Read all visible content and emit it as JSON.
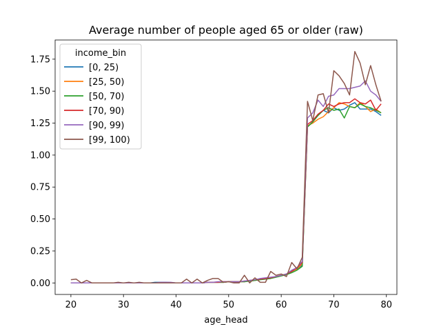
{
  "chart_data": {
    "type": "line",
    "title": "Average number of people aged 65 or older (raw)",
    "xlabel": "age_head",
    "ylabel": "",
    "xlim": [
      17,
      82
    ],
    "ylim": [
      -0.09,
      1.9
    ],
    "x_ticks": [
      20,
      30,
      40,
      50,
      60,
      70,
      80
    ],
    "y_ticks": [
      0.0,
      0.25,
      0.5,
      0.75,
      1.0,
      1.25,
      1.5,
      1.75
    ],
    "y_tick_labels": [
      "0.00",
      "0.25",
      "0.50",
      "0.75",
      "1.00",
      "1.25",
      "1.50",
      "1.75"
    ],
    "legend": {
      "title": "income_bin",
      "position": "upper-left"
    },
    "x": [
      20,
      21,
      22,
      23,
      24,
      25,
      26,
      27,
      28,
      29,
      30,
      31,
      32,
      33,
      34,
      35,
      36,
      37,
      38,
      39,
      40,
      41,
      42,
      43,
      44,
      45,
      46,
      47,
      48,
      49,
      50,
      51,
      52,
      53,
      54,
      55,
      56,
      57,
      58,
      59,
      60,
      61,
      62,
      63,
      64,
      65,
      66,
      67,
      68,
      69,
      70,
      71,
      72,
      73,
      74,
      75,
      76,
      77,
      78,
      79
    ],
    "series": [
      {
        "name": "[0, 25)",
        "color": "#1f77b4",
        "values": [
          0,
          0,
          0,
          0,
          0,
          0,
          0,
          0,
          0,
          0,
          0,
          0,
          0,
          0,
          0,
          0,
          0.005,
          0.005,
          0.005,
          0.003,
          0,
          0,
          0,
          0,
          0,
          0,
          0.005,
          0.005,
          0.005,
          0.005,
          0.01,
          0.01,
          0.01,
          0.01,
          0.015,
          0.02,
          0.03,
          0.035,
          0.04,
          0.05,
          0.06,
          0.07,
          0.09,
          0.11,
          0.14,
          1.22,
          1.26,
          1.31,
          1.35,
          1.33,
          1.37,
          1.35,
          1.36,
          1.39,
          1.41,
          1.36,
          1.36,
          1.36,
          1.34,
          1.31
        ]
      },
      {
        "name": "[25, 50)",
        "color": "#ff7f0e",
        "values": [
          0,
          0,
          0,
          0,
          0,
          0,
          0,
          0,
          0,
          0,
          0,
          0,
          0,
          0,
          0,
          0,
          0,
          0,
          0,
          0,
          0,
          0,
          0,
          0,
          0,
          0,
          0.005,
          0.005,
          0.005,
          0.005,
          0.01,
          0.01,
          0.01,
          0.01,
          0.015,
          0.02,
          0.03,
          0.035,
          0.04,
          0.05,
          0.06,
          0.07,
          0.09,
          0.11,
          0.15,
          1.23,
          1.25,
          1.28,
          1.3,
          1.34,
          1.37,
          1.41,
          1.4,
          1.38,
          1.37,
          1.41,
          1.38,
          1.34,
          1.36,
          1.33
        ]
      },
      {
        "name": "[50, 70)",
        "color": "#2ca02c",
        "values": [
          0,
          0,
          0,
          0,
          0,
          0,
          0,
          0,
          0,
          0,
          0,
          0,
          0,
          0,
          0,
          0,
          0,
          0,
          0,
          0,
          0,
          0,
          0,
          0,
          0,
          0,
          0.005,
          0.005,
          0.005,
          0.005,
          0.01,
          0.01,
          0.01,
          0.01,
          0.015,
          0.02,
          0.025,
          0.03,
          0.035,
          0.045,
          0.055,
          0.065,
          0.08,
          0.1,
          0.13,
          1.22,
          1.26,
          1.31,
          1.35,
          1.37,
          1.35,
          1.36,
          1.29,
          1.38,
          1.37,
          1.4,
          1.38,
          1.37,
          1.35,
          1.33
        ]
      },
      {
        "name": "[70, 90)",
        "color": "#d62728",
        "values": [
          0,
          0,
          0,
          0,
          0,
          0,
          0,
          0,
          0,
          0,
          0,
          0,
          0,
          0,
          0,
          0,
          0,
          0,
          0,
          0,
          0,
          0,
          0,
          0,
          0,
          0,
          0.005,
          0.005,
          0.005,
          0.01,
          0.01,
          0.01,
          0.01,
          0.015,
          0.02,
          0.025,
          0.03,
          0.035,
          0.04,
          0.05,
          0.06,
          0.07,
          0.09,
          0.12,
          0.16,
          1.24,
          1.27,
          1.32,
          1.35,
          1.4,
          1.38,
          1.4,
          1.41,
          1.41,
          1.44,
          1.41,
          1.4,
          1.43,
          1.35,
          1.4
        ]
      },
      {
        "name": "[90, 99)",
        "color": "#9467bd",
        "values": [
          0,
          0,
          0,
          0,
          0,
          0,
          0,
          0,
          0,
          0,
          0,
          0,
          0,
          0,
          0,
          0,
          0,
          0.005,
          0.005,
          0.005,
          0,
          0,
          0,
          0,
          0,
          0,
          0.005,
          0.005,
          0.01,
          0.01,
          0.01,
          0.01,
          0.01,
          0.015,
          0.02,
          0.025,
          0.035,
          0.04,
          0.045,
          0.05,
          0.06,
          0.07,
          0.1,
          0.12,
          0.17,
          1.29,
          1.33,
          1.43,
          1.38,
          1.46,
          1.47,
          1.52,
          1.52,
          1.52,
          1.53,
          1.54,
          1.58,
          1.5,
          1.47,
          1.42
        ]
      },
      {
        "name": "[99, 100)",
        "color": "#8c564b",
        "values": [
          0.025,
          0.03,
          0,
          0.02,
          0,
          0,
          0,
          0,
          0,
          0.005,
          0,
          0.005,
          0,
          0.005,
          0,
          0,
          0,
          0,
          0,
          0,
          0,
          0,
          0.03,
          0,
          0.03,
          0,
          0.02,
          0.035,
          0.035,
          0.005,
          0.01,
          0,
          0,
          0.06,
          0,
          0.04,
          0.005,
          0.005,
          0.09,
          0.06,
          0.07,
          0.05,
          0.16,
          0.11,
          0.2,
          1.42,
          1.27,
          1.47,
          1.48,
          1.33,
          1.66,
          1.62,
          1.56,
          1.47,
          1.81,
          1.72,
          1.55,
          1.7,
          1.55,
          1.42
        ]
      }
    ]
  }
}
